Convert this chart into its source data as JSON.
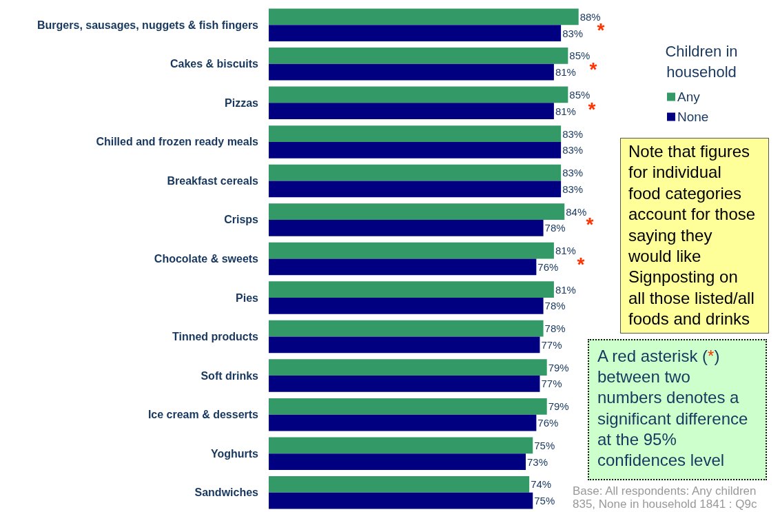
{
  "chart_data": {
    "type": "bar",
    "orientation": "horizontal",
    "categories": [
      "Burgers, sausages, nuggets & fish fingers",
      "Cakes & biscuits",
      "Pizzas",
      "Chilled and frozen ready meals",
      "Breakfast cereals",
      "Crisps",
      "Chocolate & sweets",
      "Pies",
      "Tinned products",
      "Soft drinks",
      "Ice cream & desserts",
      "Yoghurts",
      "Sandwiches"
    ],
    "series": [
      {
        "name": "Any",
        "color": "#339966",
        "values": [
          88,
          85,
          85,
          83,
          83,
          84,
          81,
          81,
          78,
          79,
          79,
          75,
          74
        ],
        "value_labels": [
          "88%",
          "85%",
          "85%",
          "83%",
          "83%",
          "84%",
          "81%",
          "81%",
          "78%",
          "79%",
          "79%",
          "75%",
          "74%"
        ]
      },
      {
        "name": "None",
        "color": "#000080",
        "values": [
          83,
          81,
          81,
          83,
          83,
          78,
          76,
          78,
          77,
          77,
          76,
          73,
          75
        ],
        "value_labels": [
          "83%",
          "81%",
          "81%",
          "83%",
          "83%",
          "78%",
          "76%",
          "78%",
          "77%",
          "77%",
          "76%",
          "73%",
          "75%"
        ]
      }
    ],
    "legend": "top right",
    "legend_title": "Children in household",
    "tick_labels": "y",
    "annotations": [
      "Note that figures for individual food categories account for those saying they would like Signposting on all those listed/all foods and drinks",
      "A red asterisk (*) between two numbers denotes a significant difference at the 95% confidences level",
      "Base: All respondents: Any children 835, None in household 1841 : Q9c",
      "*",
      "*",
      "*",
      "*",
      "*"
    ]
  }
}
